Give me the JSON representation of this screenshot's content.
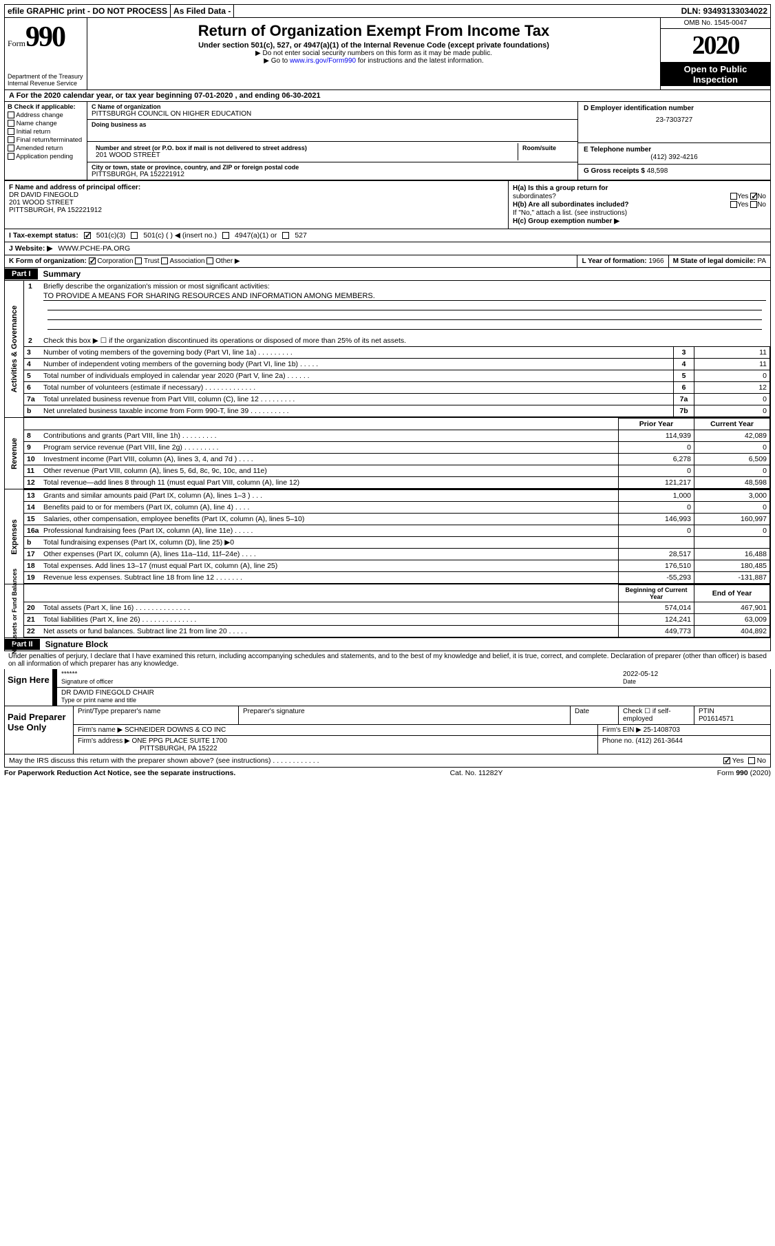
{
  "top": {
    "efile": "efile GRAPHIC print - DO NOT PROCESS",
    "asfiled": "As Filed Data -",
    "dln": "DLN: 93493133034022"
  },
  "header": {
    "form": "Form",
    "num": "990",
    "dept": "Department of the Treasury\nInternal Revenue Service",
    "title": "Return of Organization Exempt From Income Tax",
    "sub": "Under section 501(c), 527, or 4947(a)(1) of the Internal Revenue Code (except private foundations)",
    "note1": "▶ Do not enter social security numbers on this form as it may be made public.",
    "note2": "▶ Go to ",
    "link": "www.irs.gov/Form990",
    "note3": " for instructions and the latest information.",
    "omb": "OMB No. 1545-0047",
    "year": "2020",
    "otp": "Open to Public Inspection"
  },
  "A": {
    "text": "A   For the 2020 calendar year, or tax year beginning 07-01-2020    , and ending 06-30-2021"
  },
  "B": {
    "hdr": "B Check if applicable:",
    "items": [
      "Address change",
      "Name change",
      "Initial return",
      "Final return/terminated",
      "Amended return",
      "Application pending"
    ]
  },
  "C": {
    "lblname": "C Name of organization",
    "name": "PITTSBURGH COUNCIL ON HIGHER EDUCATION",
    "dba": "Doing business as",
    "lblstreet": "Number and street (or P.O. box if mail is not delivered to street address)",
    "street": "201 WOOD STREET",
    "room": "Room/suite",
    "lblcity": "City or town, state or province, country, and ZIP or foreign postal code",
    "city": "PITTSBURGH, PA  152221912"
  },
  "D": {
    "lbl": "D Employer identification number",
    "val": "23-7303727"
  },
  "E": {
    "lbl": "E Telephone number",
    "val": "(412) 392-4216"
  },
  "G": {
    "lbl": "G Gross receipts $",
    "val": "48,598"
  },
  "F": {
    "lbl": "F   Name and address of principal officer:",
    "name": "DR DAVID FINEGOLD",
    "street": "201 WOOD STREET",
    "city": "PITTSBURGH, PA  152221912"
  },
  "H": {
    "a": "H(a)  Is this a group return for",
    "a2": "subordinates?",
    "b": "H(b)  Are all subordinates included?",
    "bnote": "If \"No,\" attach a list. (see instructions)",
    "c": "H(c)  Group exemption number ▶",
    "yes": "Yes",
    "no": "No"
  },
  "I": {
    "lbl": "I   Tax-exempt status:",
    "o1": "501(c)(3)",
    "o2": "501(c) (   ) ◀ (insert no.)",
    "o3": "4947(a)(1) or",
    "o4": "527"
  },
  "J": {
    "lbl": "J   Website: ▶",
    "val": "WWW.PCHE-PA.ORG"
  },
  "K": {
    "lbl": "K Form of organization:",
    "o1": "Corporation",
    "o2": "Trust",
    "o3": "Association",
    "o4": "Other ▶"
  },
  "L": {
    "lbl": "L Year of formation:",
    "val": "1966"
  },
  "M": {
    "lbl": "M State of legal domicile:",
    "val": "PA"
  },
  "partI": {
    "label": "Part I",
    "title": "Summary"
  },
  "gov": {
    "side": "Activities & Governance",
    "q1": "Briefly describe the organization's mission or most significant activities:",
    "q1a": "TO PROVIDE A MEANS FOR SHARING RESOURCES AND INFORMATION AMONG MEMBERS.",
    "q2": "Check this box ▶ ☐ if the organization discontinued its operations or disposed of more than 25% of its net assets.",
    "rows": [
      {
        "n": "3",
        "t": "Number of voting members of the governing body (Part VI, line 1a)   .    .    .    .    .    .    .    .    .",
        "rn": "3",
        "v": "11"
      },
      {
        "n": "4",
        "t": "Number of independent voting members of the governing body (Part VI, line 1b)    .    .    .    .    .",
        "rn": "4",
        "v": "11"
      },
      {
        "n": "5",
        "t": "Total number of individuals employed in calendar year 2020 (Part V, line 2a)   .    .    .    .    .    .",
        "rn": "5",
        "v": "0"
      },
      {
        "n": "6",
        "t": "Total number of volunteers (estimate if necessary)   .    .    .    .    .    .    .    .    .    .    .    .    .",
        "rn": "6",
        "v": "12"
      },
      {
        "n": "7a",
        "t": "Total unrelated business revenue from Part VIII, column (C), line 12   .    .    .    .    .    .    .    .    .",
        "rn": "7a",
        "v": "0"
      },
      {
        "n": "b",
        "t": "Net unrelated business taxable income from Form 990-T, line 39    .    .    .    .    .    .    .    .    .    .",
        "rn": "7b",
        "v": "0"
      }
    ]
  },
  "rev": {
    "side": "Revenue",
    "hprior": "Prior Year",
    "hcur": "Current Year",
    "rows": [
      {
        "n": "8",
        "t": "Contributions and grants (Part VIII, line 1h)   .    .    .    .    .    .    .    .    .",
        "p": "114,939",
        "c": "42,089"
      },
      {
        "n": "9",
        "t": "Program service revenue (Part VIII, line 2g)   .    .    .    .    .    .    .    .    .",
        "p": "0",
        "c": "0"
      },
      {
        "n": "10",
        "t": "Investment income (Part VIII, column (A), lines 3, 4, and 7d )   .    .    .    .",
        "p": "6,278",
        "c": "6,509"
      },
      {
        "n": "11",
        "t": "Other revenue (Part VIII, column (A), lines 5, 6d, 8c, 9c, 10c, and 11e)",
        "p": "0",
        "c": "0"
      },
      {
        "n": "12",
        "t": "Total revenue—add lines 8 through 11 (must equal Part VIII, column (A), line 12)",
        "p": "121,217",
        "c": "48,598"
      }
    ]
  },
  "exp": {
    "side": "Expenses",
    "rows": [
      {
        "n": "13",
        "t": "Grants and similar amounts paid (Part IX, column (A), lines 1–3 )   .    .    .",
        "p": "1,000",
        "c": "3,000"
      },
      {
        "n": "14",
        "t": "Benefits paid to or for members (Part IX, column (A), line 4)    .    .    .    .",
        "p": "0",
        "c": "0"
      },
      {
        "n": "15",
        "t": "Salaries, other compensation, employee benefits (Part IX, column (A), lines 5–10)",
        "p": "146,993",
        "c": "160,997"
      },
      {
        "n": "16a",
        "t": "Professional fundraising fees (Part IX, column (A), line 11e)   .    .    .    .    .",
        "p": "0",
        "c": "0"
      },
      {
        "n": "b",
        "t": "Total fundraising expenses (Part IX, column (D), line 25) ▶0",
        "p": "",
        "c": ""
      },
      {
        "n": "17",
        "t": "Other expenses (Part IX, column (A), lines 11a–11d, 11f–24e)   .    .    .    .",
        "p": "28,517",
        "c": "16,488"
      },
      {
        "n": "18",
        "t": "Total expenses. Add lines 13–17 (must equal Part IX, column (A), line 25)",
        "p": "176,510",
        "c": "180,485"
      },
      {
        "n": "19",
        "t": "Revenue less expenses. Subtract line 18 from line 12 .    .    .    .    .    .    .",
        "p": "-55,293",
        "c": "-131,887"
      }
    ]
  },
  "net": {
    "side": "Net Assets or Fund Balances",
    "hbeg": "Beginning of Current Year",
    "hend": "End of Year",
    "rows": [
      {
        "n": "20",
        "t": "Total assets (Part X, line 16)   .    .    .    .    .    .    .    .    .    .    .    .    .    .",
        "p": "574,014",
        "c": "467,901"
      },
      {
        "n": "21",
        "t": "Total liabilities (Part X, line 26)  .    .    .    .    .    .    .    .    .    .    .    .    .    .",
        "p": "124,241",
        "c": "63,009"
      },
      {
        "n": "22",
        "t": "Net assets or fund balances. Subtract line 21 from line 20 .    .    .    .    .",
        "p": "449,773",
        "c": "404,892"
      }
    ]
  },
  "partII": {
    "label": "Part II",
    "title": "Signature Block"
  },
  "perjury": "Under penalties of perjury, I declare that I have examined this return, including accompanying schedules and statements, and to the best of my knowledge and belief, it is true, correct, and complete. Declaration of preparer (other than officer) is based on all information of which preparer has any knowledge.",
  "sign": {
    "label": "Sign Here",
    "stars": "******",
    "sigoff": "Signature of officer",
    "date": "2022-05-12",
    "datel": "Date",
    "name": "DR DAVID FINEGOLD CHAIR",
    "namel": "Type or print name and title"
  },
  "paid": {
    "label": "Paid Preparer Use Only",
    "h1": "Print/Type preparer's name",
    "h2": "Preparer's signature",
    "h3": "Date",
    "h4": "Check ☐ if self-employed",
    "h5": "PTIN",
    "ptin": "P01614571",
    "firmn": "Firm's name    ▶",
    "firm": "SCHNEIDER DOWNS & CO INC",
    "einl": "Firm's EIN ▶",
    "ein": "25-1408703",
    "addrl": "Firm's address ▶",
    "addr1": "ONE PPG PLACE SUITE 1700",
    "addr2": "PITTSBURGH, PA  15222",
    "phonel": "Phone no.",
    "phone": "(412) 261-3644"
  },
  "discuss": {
    "q": "May the IRS discuss this return with the preparer shown above? (see instructions)   .    .    .    .    .    .    .    .    .    .    .    .",
    "yes": "Yes",
    "no": "No"
  },
  "foot": {
    "l": "For Paperwork Reduction Act Notice, see the separate instructions.",
    "c": "Cat. No. 11282Y",
    "r": "Form 990 (2020)"
  }
}
